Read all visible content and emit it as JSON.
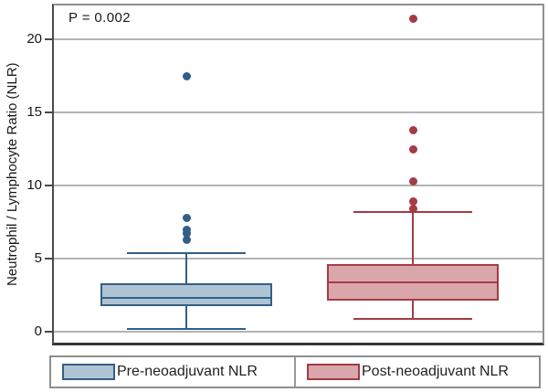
{
  "chart_data": {
    "type": "box",
    "title": "",
    "annotation": "P = 0.002",
    "xlabel": "",
    "ylabel": "Neutrophil / Lymphocyte Ratio (NLR)",
    "yticks": [
      0,
      5,
      10,
      15,
      20
    ],
    "ylim": [
      0,
      22.3
    ],
    "grid": "horizontal",
    "legend_position": "bottom",
    "colors": {
      "gridline": "#b3b3b3",
      "axis": "#4a4a4a",
      "frame": "#8f8f8f",
      "text": "#161616"
    },
    "series": [
      {
        "name": "Pre-neoadjuvant NLR",
        "fill": "#aec4d4",
        "stroke": "#335f86",
        "whisker_low": 0.2,
        "q1": 1.75,
        "median": 2.3,
        "q3": 3.3,
        "whisker_high": 5.4,
        "outliers": [
          6.3,
          6.7,
          7.0,
          7.8,
          17.5
        ]
      },
      {
        "name": "Post-neoadjuvant NLR",
        "fill": "#d9a6ab",
        "stroke": "#a53b44",
        "whisker_low": 0.9,
        "q1": 2.1,
        "median": 3.4,
        "q3": 4.6,
        "whisker_high": 8.2,
        "outliers": [
          8.4,
          8.9,
          10.3,
          12.5,
          13.8,
          21.4
        ]
      }
    ]
  }
}
